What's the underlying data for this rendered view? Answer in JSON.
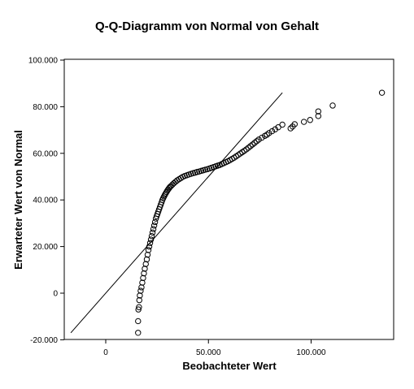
{
  "chart_data": {
    "type": "scatter",
    "title": "Q-Q-Diagramm von Normal von Gehalt",
    "xlabel": "Beobachteter Wert",
    "ylabel": "Erwarteter Wert von Normal",
    "xlim": [
      -20000,
      140000
    ],
    "ylim": [
      -20000,
      100000
    ],
    "x_ticks": [
      0,
      50000,
      100000
    ],
    "x_tick_labels": [
      "0",
      "50.000",
      "100.000"
    ],
    "y_ticks": [
      -20000,
      0,
      20000,
      40000,
      60000,
      80000,
      100000
    ],
    "y_tick_labels": [
      "-20.000",
      "0",
      "20.000",
      "40.000",
      "60.000",
      "80.000",
      "100.000"
    ],
    "reference_line": {
      "x": [
        -17000,
        86000
      ],
      "y": [
        -17000,
        86000
      ]
    },
    "grid": false,
    "legend": "none",
    "points": {
      "x": [
        15750,
        15750,
        15900,
        16200,
        16350,
        16600,
        17000,
        17400,
        17800,
        18200,
        18600,
        19000,
        19500,
        20000,
        20400,
        20800,
        21200,
        21600,
        22000,
        22400,
        22800,
        23200,
        23600,
        24000,
        24400,
        24800,
        25200,
        25600,
        26000,
        26400,
        26800,
        27200,
        27600,
        28000,
        28400,
        28800,
        29200,
        29600,
        30000,
        30400,
        30800,
        31200,
        31800,
        32500,
        33200,
        34000,
        34800,
        35700,
        36600,
        37500,
        38500,
        39500,
        40500,
        41500,
        42500,
        43500,
        44500,
        45500,
        46500,
        47500,
        48500,
        49500,
        50500,
        51500,
        52500,
        53500,
        54500,
        55500,
        56500,
        57500,
        58500,
        59500,
        60500,
        61500,
        62500,
        63500,
        64500,
        65500,
        66500,
        67500,
        68500,
        69500,
        70500,
        71500,
        72500,
        73500,
        74500,
        76000,
        77500,
        78500,
        79500,
        81000,
        82500,
        84000,
        86000,
        90000,
        91000,
        92000,
        96500,
        99500,
        103500,
        103500,
        110500,
        134500
      ],
      "y": [
        -17000,
        -12000,
        -7000,
        -6000,
        -3000,
        -1000,
        1000,
        2500,
        4500,
        6500,
        8500,
        10500,
        12500,
        14500,
        16500,
        18500,
        20000,
        21500,
        23000,
        24500,
        26000,
        27500,
        29000,
        30500,
        32000,
        33000,
        34000,
        35000,
        36000,
        37000,
        38000,
        39000,
        40000,
        40800,
        41500,
        42200,
        42800,
        43400,
        44000,
        44500,
        45000,
        45500,
        46000,
        46600,
        47200,
        47800,
        48400,
        48900,
        49400,
        49900,
        50300,
        50600,
        50900,
        51200,
        51500,
        51700,
        52000,
        52200,
        52500,
        52700,
        53000,
        53200,
        53500,
        53800,
        54100,
        54400,
        54700,
        55000,
        55400,
        55800,
        56200,
        56600,
        57100,
        57600,
        58100,
        58700,
        59300,
        59900,
        60500,
        61100,
        61700,
        62400,
        63100,
        63800,
        64500,
        65200,
        65900,
        66700,
        67500,
        68000,
        68700,
        69500,
        70300,
        71200,
        72300,
        70700,
        71500,
        72500,
        73500,
        74300,
        76000,
        78000,
        80500,
        86000
      ]
    }
  }
}
